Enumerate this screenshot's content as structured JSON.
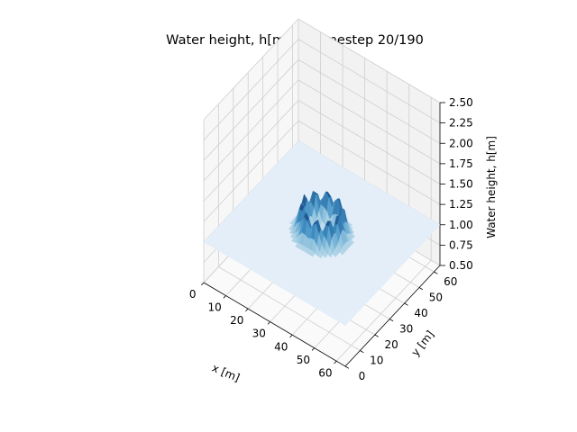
{
  "chart_data": {
    "type": "surface3d",
    "title": "Water height, h[m], at timestep 20/190",
    "xlabel": "x [m]",
    "ylabel": "y [m]",
    "zlabel": "Water height, h[m]",
    "x_ticks": [
      "0",
      "10",
      "20",
      "30",
      "40",
      "50",
      "60"
    ],
    "y_ticks": [
      "0",
      "10",
      "20",
      "30",
      "40",
      "50",
      "60"
    ],
    "z_ticks": [
      "0.50",
      "0.75",
      "1.00",
      "1.25",
      "1.50",
      "1.75",
      "2.00",
      "2.25",
      "2.50"
    ],
    "xlim": [
      0,
      64
    ],
    "ylim": [
      0,
      64
    ],
    "zlim": [
      0.5,
      2.5
    ],
    "grid": true,
    "colormap": "Blues",
    "surface": {
      "base_height": 1.0,
      "feature": "ring-shaped wave crest",
      "center": [
        32,
        32
      ],
      "ring_radius": 7.5,
      "ring_width": 2.3,
      "crest_height": 1.37,
      "inner_trough_height": 0.9
    }
  }
}
